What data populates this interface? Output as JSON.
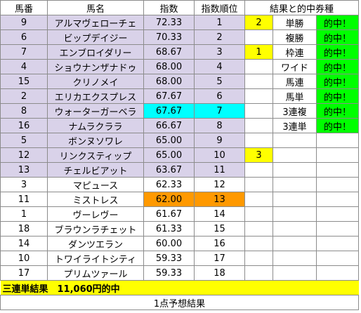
{
  "headers": {
    "number": "馬番",
    "name": "馬名",
    "index": "指数",
    "rank": "指数順位",
    "result": "結果と的中券種"
  },
  "rows": [
    {
      "number": "9",
      "name": "アルマヴェローチェ",
      "index": "72.33",
      "rank": "1",
      "result": "2",
      "bet": "単勝",
      "hit": "的中！"
    },
    {
      "number": "6",
      "name": "ビップデイジー",
      "index": "70.33",
      "rank": "2",
      "result": "",
      "bet": "複勝",
      "hit": "的中！"
    },
    {
      "number": "7",
      "name": "エンブロイダリー",
      "index": "68.67",
      "rank": "3",
      "result": "1",
      "bet": "枠連",
      "hit": "的中！"
    },
    {
      "number": "4",
      "name": "ショウナンザナドゥ",
      "index": "68.00",
      "rank": "4",
      "result": "",
      "bet": "ワイド",
      "hit": "的中！"
    },
    {
      "number": "15",
      "name": "クリノメイ",
      "index": "68.00",
      "rank": "5",
      "result": "",
      "bet": "馬連",
      "hit": "的中！"
    },
    {
      "number": "2",
      "name": "エリカエクスプレス",
      "index": "67.67",
      "rank": "6",
      "result": "",
      "bet": "馬単",
      "hit": "的中！"
    },
    {
      "number": "8",
      "name": "ウォーターガーベラ",
      "index": "67.67",
      "rank": "7",
      "result": "",
      "bet": "3連複",
      "hit": "的中！"
    },
    {
      "number": "16",
      "name": "ナムラクララ",
      "index": "66.67",
      "rank": "8",
      "result": "",
      "bet": "3連単",
      "hit": "的中！"
    },
    {
      "number": "5",
      "name": "ボンヌソワレ",
      "index": "65.00",
      "rank": "9",
      "result": "",
      "bet": "",
      "hit": ""
    },
    {
      "number": "12",
      "name": "リンクスティップ",
      "index": "65.00",
      "rank": "10",
      "result": "3",
      "bet": "",
      "hit": ""
    },
    {
      "number": "13",
      "name": "チェルビアット",
      "index": "63.67",
      "rank": "11",
      "result": "",
      "bet": "",
      "hit": ""
    },
    {
      "number": "3",
      "name": "マピュース",
      "index": "62.33",
      "rank": "12",
      "result": "",
      "bet": "",
      "hit": ""
    },
    {
      "number": "11",
      "name": "ミストレス",
      "index": "62.00",
      "rank": "13",
      "result": "",
      "bet": "",
      "hit": ""
    },
    {
      "number": "1",
      "name": "ヴーレヴー",
      "index": "61.67",
      "rank": "14",
      "result": "",
      "bet": "",
      "hit": ""
    },
    {
      "number": "18",
      "name": "ブラウンラチェット",
      "index": "61.33",
      "rank": "15",
      "result": "",
      "bet": "",
      "hit": ""
    },
    {
      "number": "14",
      "name": "ダンツエラン",
      "index": "60.00",
      "rank": "16",
      "result": "",
      "bet": "",
      "hit": ""
    },
    {
      "number": "10",
      "name": "トワイライトシティ",
      "index": "59.33",
      "rank": "17",
      "result": "",
      "bet": "",
      "hit": ""
    },
    {
      "number": "17",
      "name": "プリムツァール",
      "index": "59.33",
      "rank": "18",
      "result": "",
      "bet": "",
      "hit": ""
    }
  ],
  "summary": "三連単結果　11,060円的中",
  "footer": "1点予想結果",
  "colors": {
    "top_rank_purple": "#d9d2e9",
    "highlight_cyan": "#00ffff",
    "highlight_orange": "#ff9900",
    "result_yellow": "#ffff00",
    "hit_green": "#00ff00"
  }
}
